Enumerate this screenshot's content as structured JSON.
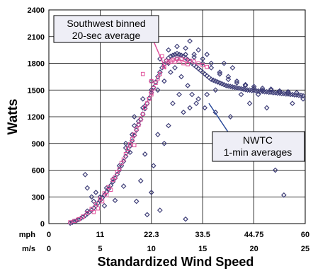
{
  "chart_data": {
    "type": "scatter",
    "ylabel": "Watts",
    "xlabel": "Standardized Wind Speed",
    "xlim": [
      0,
      60
    ],
    "ylim": [
      0,
      2400
    ],
    "y_ticks": [
      "0",
      "300",
      "600",
      "900",
      "1200",
      "1500",
      "1800",
      "2100",
      "2400"
    ],
    "x_ticks_mph_label": "mph",
    "x_ticks_mph": [
      "0",
      "11",
      "22.3",
      "33.5",
      "44.75",
      "60"
    ],
    "x_ticks_ms_label": "m/s",
    "x_ticks_ms": [
      "0",
      "5",
      "10",
      "15",
      "20",
      "25"
    ],
    "grid": true,
    "series": [
      {
        "name": "NWTC 1-min averages",
        "label_lines": [
          "NWTC",
          "1-min averages"
        ],
        "marker": "diamond",
        "color": "#3f3f78",
        "points": [
          [
            5.0,
            5
          ],
          [
            5.5,
            15
          ],
          [
            6.0,
            25
          ],
          [
            6.5,
            35
          ],
          [
            7.0,
            45
          ],
          [
            7.5,
            60
          ],
          [
            8.0,
            75
          ],
          [
            8.5,
            90
          ],
          [
            9.0,
            110
          ],
          [
            9.5,
            130
          ],
          [
            10.0,
            150
          ],
          [
            10.5,
            175
          ],
          [
            11.0,
            200
          ],
          [
            11.5,
            230
          ],
          [
            12.0,
            260
          ],
          [
            12.5,
            290
          ],
          [
            13.0,
            320
          ],
          [
            13.5,
            355
          ],
          [
            14.0,
            390
          ],
          [
            14.5,
            430
          ],
          [
            15.0,
            470
          ],
          [
            15.5,
            510
          ],
          [
            16.0,
            555
          ],
          [
            16.5,
            600
          ],
          [
            17.0,
            650
          ],
          [
            17.5,
            700
          ],
          [
            18.0,
            755
          ],
          [
            18.5,
            810
          ],
          [
            19.0,
            870
          ],
          [
            19.5,
            930
          ],
          [
            20.0,
            990
          ],
          [
            20.5,
            1050
          ],
          [
            21.0,
            1110
          ],
          [
            21.5,
            1170
          ],
          [
            22.0,
            1230
          ],
          [
            22.5,
            1290
          ],
          [
            23.0,
            1350
          ],
          [
            23.5,
            1410
          ],
          [
            24.0,
            1470
          ],
          [
            24.5,
            1530
          ],
          [
            25.0,
            1590
          ],
          [
            25.5,
            1650
          ],
          [
            26.0,
            1700
          ],
          [
            26.5,
            1750
          ],
          [
            27.0,
            1790
          ],
          [
            27.5,
            1830
          ],
          [
            28.0,
            1860
          ],
          [
            28.5,
            1880
          ],
          [
            29.0,
            1890
          ],
          [
            29.5,
            1900
          ],
          [
            30.0,
            1910
          ],
          [
            30.5,
            1900
          ],
          [
            31.0,
            1890
          ],
          [
            31.5,
            1880
          ],
          [
            32.0,
            1860
          ],
          [
            32.5,
            1840
          ],
          [
            33.0,
            1820
          ],
          [
            33.5,
            1800
          ],
          [
            34.0,
            1780
          ],
          [
            34.5,
            1760
          ],
          [
            35.0,
            1740
          ],
          [
            35.5,
            1720
          ],
          [
            36.0,
            1700
          ],
          [
            36.5,
            1680
          ],
          [
            37.0,
            1660
          ],
          [
            37.5,
            1640
          ],
          [
            38.0,
            1620
          ],
          [
            38.5,
            1610
          ],
          [
            39.0,
            1600
          ],
          [
            39.5,
            1590
          ],
          [
            40.0,
            1580
          ],
          [
            40.5,
            1570
          ],
          [
            41.0,
            1560
          ],
          [
            41.5,
            1550
          ],
          [
            42.0,
            1545
          ],
          [
            42.5,
            1540
          ],
          [
            43.0,
            1535
          ],
          [
            43.5,
            1530
          ],
          [
            44.0,
            1525
          ],
          [
            44.5,
            1520
          ],
          [
            45.0,
            1515
          ],
          [
            45.5,
            1510
          ],
          [
            46.0,
            1505
          ],
          [
            46.5,
            1500
          ],
          [
            47.0,
            1500
          ],
          [
            47.5,
            1495
          ],
          [
            48.0,
            1495
          ],
          [
            48.5,
            1490
          ],
          [
            49.0,
            1490
          ],
          [
            49.5,
            1485
          ],
          [
            50.0,
            1485
          ],
          [
            50.5,
            1480
          ],
          [
            51.0,
            1480
          ],
          [
            51.5,
            1475
          ],
          [
            52.0,
            1475
          ],
          [
            52.5,
            1470
          ],
          [
            53.0,
            1470
          ],
          [
            53.5,
            1465
          ],
          [
            54.0,
            1465
          ],
          [
            54.5,
            1460
          ],
          [
            55.0,
            1460
          ],
          [
            55.5,
            1455
          ],
          [
            56.0,
            1455
          ],
          [
            56.5,
            1450
          ],
          [
            57.0,
            1450
          ],
          [
            57.5,
            1445
          ],
          [
            58.0,
            1445
          ],
          [
            58.5,
            1440
          ],
          [
            59.0,
            1440
          ],
          [
            59.5,
            1435
          ],
          [
            20.0,
            1200
          ],
          [
            22.0,
            1400
          ],
          [
            24.0,
            1600
          ],
          [
            26.0,
            1850
          ],
          [
            28.0,
            1950
          ],
          [
            30.0,
            1990
          ],
          [
            32.0,
            1970
          ],
          [
            34.0,
            1900
          ],
          [
            36.0,
            1850
          ],
          [
            38.0,
            1800
          ],
          [
            40.0,
            1700
          ],
          [
            42.0,
            1650
          ],
          [
            44.0,
            1600
          ],
          [
            46.0,
            1550
          ],
          [
            48.0,
            1520
          ],
          [
            50.0,
            1500
          ],
          [
            52.0,
            1510
          ],
          [
            54.0,
            1490
          ],
          [
            56.0,
            1480
          ],
          [
            58.0,
            1470
          ],
          [
            18.0,
            900
          ],
          [
            20.0,
            1100
          ],
          [
            22.0,
            1300
          ],
          [
            24.0,
            1500
          ],
          [
            26.0,
            1700
          ],
          [
            28.0,
            1800
          ],
          [
            30.0,
            1850
          ],
          [
            32.0,
            1900
          ],
          [
            34.0,
            1870
          ],
          [
            36.0,
            1800
          ],
          [
            38.0,
            1750
          ],
          [
            40.0,
            1680
          ],
          [
            42.0,
            1620
          ],
          [
            44.0,
            1580
          ],
          [
            46.0,
            1560
          ],
          [
            48.0,
            1540
          ],
          [
            50.0,
            1520
          ],
          [
            52.0,
            1500
          ],
          [
            54.0,
            1480
          ],
          [
            56.0,
            1470
          ],
          [
            9.0,
            140
          ],
          [
            10.5,
            250
          ],
          [
            12.0,
            300
          ],
          [
            13.5,
            400
          ],
          [
            15.0,
            500
          ],
          [
            16.5,
            650
          ],
          [
            18.0,
            850
          ],
          [
            19.5,
            1000
          ],
          [
            21.0,
            1150
          ],
          [
            22.5,
            1320
          ],
          [
            25.5,
            1500
          ],
          [
            27.0,
            1600
          ],
          [
            28.5,
            1700
          ],
          [
            29.5,
            1750
          ],
          [
            31.0,
            1650
          ],
          [
            32.5,
            1550
          ],
          [
            33.5,
            1450
          ],
          [
            35.0,
            1400
          ],
          [
            37.0,
            1450
          ],
          [
            39.0,
            1500
          ],
          [
            8.5,
            550
          ],
          [
            9.0,
            400
          ],
          [
            10.0,
            300
          ],
          [
            11.0,
            350
          ],
          [
            13.0,
            200
          ],
          [
            15.5,
            260
          ],
          [
            17.5,
            420
          ],
          [
            19.0,
            800
          ],
          [
            20.5,
            250
          ],
          [
            21.5,
            480
          ],
          [
            22.5,
            780
          ],
          [
            23.0,
            100
          ],
          [
            24.0,
            350
          ],
          [
            24.5,
            650
          ],
          [
            25.5,
            1000
          ],
          [
            26.0,
            150
          ],
          [
            27.0,
            900
          ],
          [
            28.0,
            1100
          ],
          [
            29.0,
            1350
          ],
          [
            30.5,
            1450
          ],
          [
            31.5,
            1250
          ],
          [
            32.0,
            50
          ],
          [
            33.0,
            1300
          ],
          [
            34.5,
            1350
          ],
          [
            36.5,
            1300
          ],
          [
            39.0,
            1250
          ],
          [
            42.5,
            1200
          ],
          [
            47.0,
            1350
          ],
          [
            51.0,
            1300
          ],
          [
            53.0,
            600
          ],
          [
            55.0,
            320
          ],
          [
            57.0,
            1350
          ],
          [
            59.5,
            1400
          ],
          [
            45.0,
            1450
          ],
          [
            49.0,
            1450
          ],
          [
            43.0,
            1750
          ],
          [
            41.0,
            1800
          ],
          [
            37.0,
            1900
          ],
          [
            35.0,
            1950
          ],
          [
            33.0,
            2050
          ]
        ]
      },
      {
        "name": "Southwest binned 20-sec average",
        "label_lines": [
          "Southwest binned",
          "20-sec average"
        ],
        "marker": "square",
        "color": "#e0509a",
        "points": [
          [
            5.0,
            15
          ],
          [
            6.0,
            30
          ],
          [
            7.0,
            50
          ],
          [
            8.0,
            80
          ],
          [
            9.0,
            120
          ],
          [
            10.0,
            165
          ],
          [
            11.0,
            220
          ],
          [
            12.0,
            280
          ],
          [
            13.0,
            340
          ],
          [
            14.0,
            410
          ],
          [
            15.0,
            490
          ],
          [
            16.0,
            580
          ],
          [
            17.0,
            680
          ],
          [
            18.0,
            780
          ],
          [
            19.0,
            890
          ],
          [
            20.0,
            1000
          ],
          [
            21.0,
            1110
          ],
          [
            22.0,
            1230
          ],
          [
            23.0,
            1350
          ],
          [
            24.0,
            1470
          ],
          [
            25.0,
            1580
          ],
          [
            26.0,
            1680
          ],
          [
            27.0,
            1760
          ],
          [
            28.0,
            1810
          ],
          [
            29.0,
            1840
          ],
          [
            30.0,
            1850
          ],
          [
            31.0,
            1850
          ],
          [
            32.0,
            1840
          ],
          [
            33.0,
            1830
          ],
          [
            34.0,
            1820
          ],
          [
            35.0,
            1800
          ],
          [
            36.0,
            1780
          ],
          [
            37.0,
            1760
          ],
          [
            26.5,
            1880
          ],
          [
            27.5,
            1830
          ],
          [
            28.5,
            1820
          ],
          [
            29.5,
            1820
          ],
          [
            30.5,
            1830
          ],
          [
            31.5,
            1800
          ],
          [
            32.5,
            1790
          ],
          [
            10.5,
            130
          ],
          [
            11.5,
            170
          ],
          [
            12.5,
            250
          ],
          [
            13.5,
            320
          ],
          [
            14.5,
            380
          ],
          [
            15.5,
            520
          ],
          [
            16.5,
            610
          ],
          [
            17.5,
            720
          ],
          [
            18.5,
            840
          ],
          [
            19.5,
            950
          ],
          [
            20.5,
            1060
          ],
          [
            21.5,
            1170
          ],
          [
            22.5,
            1300
          ],
          [
            23.5,
            1400
          ],
          [
            24.5,
            1520
          ],
          [
            25.5,
            1630
          ],
          [
            20.0,
            880
          ],
          [
            24.0,
            1450
          ],
          [
            24.0,
            1600
          ],
          [
            22.0,
            1680
          ]
        ]
      }
    ]
  }
}
